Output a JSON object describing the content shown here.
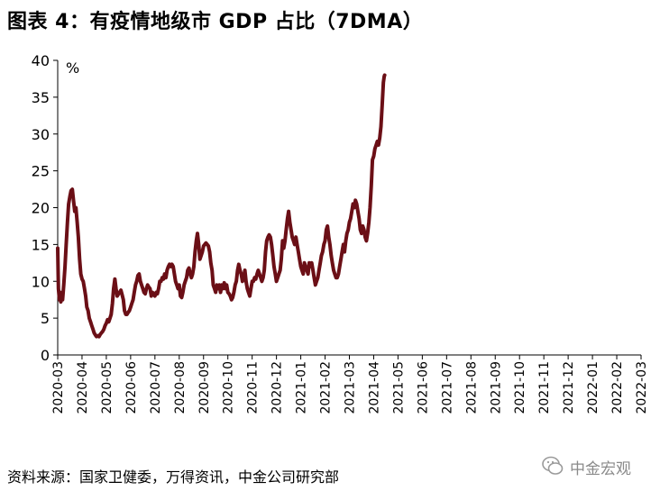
{
  "title": "图表 4：有疫情地级市 GDP 占比（7DMA）",
  "source": "资料来源：国家卫健委，万得资讯，中金公司研究部",
  "watermark": "中金宏观",
  "chart_data": {
    "type": "line",
    "unit": "%",
    "ylim": [
      0,
      40
    ],
    "yticks": [
      0,
      5,
      10,
      15,
      20,
      25,
      30,
      35,
      40
    ],
    "xticks": [
      "2020-03",
      "2020-04",
      "2020-05",
      "2020-06",
      "2020-07",
      "2020-08",
      "2020-09",
      "2020-10",
      "2020-11",
      "2020-12",
      "2021-01",
      "2021-02",
      "2021-03",
      "2021-04",
      "2021-05",
      "2021-06",
      "2021-07",
      "2021-08",
      "2021-09",
      "2021-10",
      "2021-11",
      "2021-12",
      "2022-01",
      "2022-02",
      "2022-03"
    ],
    "series_color": "#6b0f16",
    "series": [
      {
        "values": [
          [
            0.0,
            14.5
          ],
          [
            0.03,
            9.0
          ],
          [
            0.07,
            7.5
          ],
          [
            0.1,
            8.5
          ],
          [
            0.13,
            7.2
          ],
          [
            0.17,
            8.0
          ],
          [
            0.2,
            7.5
          ],
          [
            0.25,
            9.5
          ],
          [
            0.3,
            12.0
          ],
          [
            0.35,
            15.0
          ],
          [
            0.4,
            18.0
          ],
          [
            0.45,
            20.5
          ],
          [
            0.5,
            21.5
          ],
          [
            0.55,
            22.3
          ],
          [
            0.6,
            22.5
          ],
          [
            0.65,
            21.0
          ],
          [
            0.7,
            19.5
          ],
          [
            0.75,
            20.0
          ],
          [
            0.8,
            18.0
          ],
          [
            0.85,
            16.0
          ],
          [
            0.9,
            13.0
          ],
          [
            0.95,
            11.0
          ],
          [
            1.0,
            10.3
          ],
          [
            1.05,
            10.0
          ],
          [
            1.1,
            9.0
          ],
          [
            1.15,
            8.0
          ],
          [
            1.2,
            6.5
          ],
          [
            1.25,
            6.0
          ],
          [
            1.3,
            5.0
          ],
          [
            1.35,
            4.5
          ],
          [
            1.4,
            4.0
          ],
          [
            1.45,
            3.5
          ],
          [
            1.5,
            3.0
          ],
          [
            1.55,
            2.7
          ],
          [
            1.6,
            2.5
          ],
          [
            1.65,
            2.6
          ],
          [
            1.7,
            2.5
          ],
          [
            1.75,
            2.8
          ],
          [
            1.8,
            3.0
          ],
          [
            1.85,
            3.2
          ],
          [
            1.9,
            3.5
          ],
          [
            1.95,
            4.0
          ],
          [
            2.0,
            4.3
          ],
          [
            2.05,
            4.8
          ],
          [
            2.1,
            4.5
          ],
          [
            2.15,
            5.0
          ],
          [
            2.2,
            5.5
          ],
          [
            2.25,
            7.0
          ],
          [
            2.3,
            9.0
          ],
          [
            2.35,
            10.3
          ],
          [
            2.4,
            9.0
          ],
          [
            2.45,
            8.0
          ],
          [
            2.5,
            8.3
          ],
          [
            2.55,
            8.5
          ],
          [
            2.6,
            8.8
          ],
          [
            2.65,
            8.2
          ],
          [
            2.7,
            7.5
          ],
          [
            2.75,
            6.0
          ],
          [
            2.8,
            5.5
          ],
          [
            2.85,
            5.5
          ],
          [
            2.9,
            5.8
          ],
          [
            2.95,
            6.0
          ],
          [
            3.0,
            6.5
          ],
          [
            3.05,
            7.0
          ],
          [
            3.1,
            7.5
          ],
          [
            3.15,
            8.5
          ],
          [
            3.2,
            9.5
          ],
          [
            3.25,
            10.0
          ],
          [
            3.3,
            10.8
          ],
          [
            3.35,
            11.0
          ],
          [
            3.4,
            10.0
          ],
          [
            3.45,
            9.5
          ],
          [
            3.5,
            9.0
          ],
          [
            3.55,
            8.5
          ],
          [
            3.6,
            8.3
          ],
          [
            3.65,
            9.0
          ],
          [
            3.7,
            9.5
          ],
          [
            3.75,
            9.2
          ],
          [
            3.8,
            9.0
          ],
          [
            3.85,
            8.0
          ],
          [
            3.9,
            8.5
          ],
          [
            3.95,
            8.2
          ],
          [
            4.0,
            8.0
          ],
          [
            4.05,
            8.5
          ],
          [
            4.1,
            8.3
          ],
          [
            4.15,
            9.0
          ],
          [
            4.2,
            10.0
          ],
          [
            4.25,
            10.0
          ],
          [
            4.3,
            10.5
          ],
          [
            4.35,
            10.3
          ],
          [
            4.4,
            11.0
          ],
          [
            4.45,
            10.5
          ],
          [
            4.5,
            11.5
          ],
          [
            4.55,
            12.0
          ],
          [
            4.6,
            12.3
          ],
          [
            4.65,
            12.0
          ],
          [
            4.7,
            12.3
          ],
          [
            4.75,
            12.0
          ],
          [
            4.8,
            11.0
          ],
          [
            4.85,
            10.0
          ],
          [
            4.9,
            9.5
          ],
          [
            4.95,
            9.0
          ],
          [
            5.0,
            9.5
          ],
          [
            5.05,
            8.0
          ],
          [
            5.1,
            7.8
          ],
          [
            5.15,
            8.5
          ],
          [
            5.2,
            9.5
          ],
          [
            5.25,
            10.0
          ],
          [
            5.3,
            10.5
          ],
          [
            5.35,
            11.5
          ],
          [
            5.4,
            11.8
          ],
          [
            5.45,
            11.0
          ],
          [
            5.5,
            10.5
          ],
          [
            5.55,
            11.0
          ],
          [
            5.6,
            12.0
          ],
          [
            5.65,
            14.0
          ],
          [
            5.7,
            15.5
          ],
          [
            5.75,
            16.5
          ],
          [
            5.8,
            15.0
          ],
          [
            5.85,
            13.0
          ],
          [
            5.9,
            13.5
          ],
          [
            5.95,
            14.0
          ],
          [
            6.0,
            14.8
          ],
          [
            6.05,
            15.0
          ],
          [
            6.1,
            15.2
          ],
          [
            6.15,
            15.0
          ],
          [
            6.2,
            14.8
          ],
          [
            6.25,
            14.0
          ],
          [
            6.3,
            12.5
          ],
          [
            6.35,
            11.5
          ],
          [
            6.4,
            9.5
          ],
          [
            6.45,
            9.0
          ],
          [
            6.5,
            8.5
          ],
          [
            6.55,
            9.5
          ],
          [
            6.6,
            9.0
          ],
          [
            6.65,
            9.5
          ],
          [
            6.7,
            8.5
          ],
          [
            6.75,
            9.5
          ],
          [
            6.8,
            9.0
          ],
          [
            6.85,
            9.8
          ],
          [
            6.9,
            9.0
          ],
          [
            6.95,
            9.5
          ],
          [
            7.0,
            8.5
          ],
          [
            7.05,
            8.3
          ],
          [
            7.1,
            8.0
          ],
          [
            7.15,
            7.5
          ],
          [
            7.2,
            7.8
          ],
          [
            7.25,
            8.5
          ],
          [
            7.3,
            9.5
          ],
          [
            7.35,
            10.0
          ],
          [
            7.4,
            11.5
          ],
          [
            7.45,
            12.3
          ],
          [
            7.5,
            11.5
          ],
          [
            7.55,
            11.0
          ],
          [
            7.6,
            10.0
          ],
          [
            7.65,
            10.5
          ],
          [
            7.7,
            11.5
          ],
          [
            7.75,
            10.0
          ],
          [
            7.8,
            9.0
          ],
          [
            7.85,
            8.5
          ],
          [
            7.9,
            8.0
          ],
          [
            7.95,
            9.0
          ],
          [
            8.0,
            10.0
          ],
          [
            8.05,
            10.0
          ],
          [
            8.1,
            10.5
          ],
          [
            8.15,
            10.3
          ],
          [
            8.2,
            11.0
          ],
          [
            8.25,
            11.5
          ],
          [
            8.3,
            11.0
          ],
          [
            8.35,
            10.5
          ],
          [
            8.4,
            10.0
          ],
          [
            8.45,
            10.5
          ],
          [
            8.5,
            11.5
          ],
          [
            8.55,
            14.0
          ],
          [
            8.6,
            15.5
          ],
          [
            8.65,
            16.0
          ],
          [
            8.7,
            16.3
          ],
          [
            8.75,
            16.0
          ],
          [
            8.8,
            15.0
          ],
          [
            8.85,
            13.5
          ],
          [
            8.9,
            12.0
          ],
          [
            8.95,
            11.0
          ],
          [
            9.0,
            10.0
          ],
          [
            9.05,
            10.5
          ],
          [
            9.1,
            11.0
          ],
          [
            9.15,
            11.5
          ],
          [
            9.2,
            13.0
          ],
          [
            9.25,
            15.5
          ],
          [
            9.3,
            14.5
          ],
          [
            9.35,
            15.5
          ],
          [
            9.4,
            17.0
          ],
          [
            9.45,
            18.5
          ],
          [
            9.5,
            19.5
          ],
          [
            9.55,
            18.0
          ],
          [
            9.6,
            17.0
          ],
          [
            9.65,
            16.0
          ],
          [
            9.7,
            15.5
          ],
          [
            9.75,
            15.0
          ],
          [
            9.8,
            16.0
          ],
          [
            9.85,
            15.0
          ],
          [
            9.9,
            14.0
          ],
          [
            9.95,
            13.0
          ],
          [
            10.0,
            12.0
          ],
          [
            10.05,
            11.5
          ],
          [
            10.1,
            11.0
          ],
          [
            10.15,
            12.5
          ],
          [
            10.2,
            12.0
          ],
          [
            10.25,
            11.5
          ],
          [
            10.3,
            11.0
          ],
          [
            10.35,
            12.5
          ],
          [
            10.4,
            12.0
          ],
          [
            10.45,
            12.5
          ],
          [
            10.5,
            11.5
          ],
          [
            10.55,
            10.5
          ],
          [
            10.6,
            9.5
          ],
          [
            10.65,
            10.0
          ],
          [
            10.7,
            10.5
          ],
          [
            10.75,
            11.5
          ],
          [
            10.8,
            12.5
          ],
          [
            10.85,
            13.5
          ],
          [
            10.9,
            14.0
          ],
          [
            10.95,
            15.0
          ],
          [
            11.0,
            15.5
          ],
          [
            11.05,
            17.0
          ],
          [
            11.1,
            17.5
          ],
          [
            11.15,
            16.0
          ],
          [
            11.2,
            15.0
          ],
          [
            11.25,
            13.5
          ],
          [
            11.3,
            12.5
          ],
          [
            11.35,
            11.5
          ],
          [
            11.4,
            11.0
          ],
          [
            11.45,
            10.5
          ],
          [
            11.5,
            10.5
          ],
          [
            11.55,
            11.0
          ],
          [
            11.6,
            12.0
          ],
          [
            11.65,
            13.0
          ],
          [
            11.7,
            14.0
          ],
          [
            11.75,
            15.0
          ],
          [
            11.8,
            14.0
          ],
          [
            11.85,
            15.5
          ],
          [
            11.9,
            16.5
          ],
          [
            11.95,
            17.0
          ],
          [
            12.0,
            18.0
          ],
          [
            12.05,
            18.5
          ],
          [
            12.1,
            19.5
          ],
          [
            12.15,
            20.5
          ],
          [
            12.2,
            20.0
          ],
          [
            12.25,
            21.0
          ],
          [
            12.3,
            20.5
          ],
          [
            12.35,
            19.5
          ],
          [
            12.4,
            18.5
          ],
          [
            12.45,
            17.0
          ],
          [
            12.5,
            16.5
          ],
          [
            12.55,
            17.5
          ],
          [
            12.6,
            17.0
          ],
          [
            12.65,
            16.0
          ],
          [
            12.7,
            15.5
          ],
          [
            12.75,
            16.5
          ],
          [
            12.8,
            18.0
          ],
          [
            12.85,
            20.0
          ],
          [
            12.9,
            23.0
          ],
          [
            12.95,
            26.5
          ],
          [
            13.0,
            27.0
          ],
          [
            13.05,
            28.0
          ],
          [
            13.1,
            28.5
          ],
          [
            13.15,
            29.0
          ],
          [
            13.2,
            28.5
          ],
          [
            13.25,
            29.5
          ],
          [
            13.3,
            31.0
          ],
          [
            13.35,
            34.0
          ],
          [
            13.4,
            37.0
          ],
          [
            13.43,
            37.8
          ],
          [
            13.45,
            38.0
          ]
        ]
      }
    ]
  }
}
